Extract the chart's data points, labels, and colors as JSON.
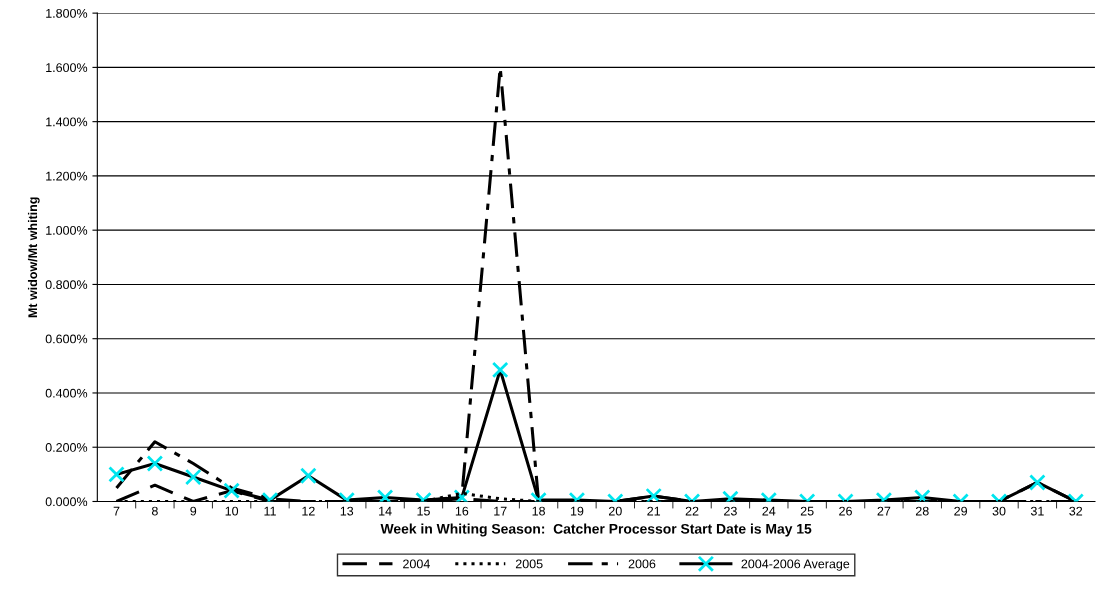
{
  "chart_data": {
    "type": "line",
    "xlabel": "Week in Whiting Season:  Catcher Processor Start Date is May 15",
    "ylabel": "Mt widow/Mt whiting",
    "categories": [
      "7",
      "8",
      "9",
      "10",
      "11",
      "12",
      "13",
      "14",
      "15",
      "16",
      "17",
      "18",
      "19",
      "20",
      "21",
      "22",
      "23",
      "24",
      "25",
      "26",
      "27",
      "28",
      "29",
      "30",
      "31",
      "32"
    ],
    "series": [
      {
        "name": "2004",
        "color": "#000000",
        "line_style": "dashed",
        "marker": "none",
        "values": [
          0.0,
          0.06,
          0.0,
          0.04,
          0.0,
          0.0,
          0.0,
          0.0,
          0.0,
          0.01,
          0.0,
          0.0,
          0.0,
          0.0,
          0.02,
          0.0,
          0.0,
          0.0,
          0.0,
          0.0,
          0.0,
          0.0,
          0.0,
          0.0,
          0.07,
          0.0
        ]
      },
      {
        "name": "2005",
        "color": "#000000",
        "line_style": "dotted",
        "marker": "none",
        "values": [
          0.0,
          0.0,
          0.0,
          0.0,
          0.0,
          0.0,
          0.0,
          0.0,
          0.0,
          0.03,
          0.01,
          0.0,
          0.0,
          0.0,
          0.0,
          0.0,
          0.0,
          0.0,
          0.0,
          0.0,
          0.0,
          0.0,
          0.0,
          0.0,
          0.0,
          0.0
        ]
      },
      {
        "name": "2006",
        "color": "#000000",
        "line_style": "dashdot",
        "marker": "none",
        "values": [
          0.05,
          0.22,
          0.14,
          0.05,
          0.01,
          0.0,
          0.0,
          0.0,
          0.0,
          0.02,
          1.6,
          0.0,
          0.0,
          0.0,
          0.0,
          0.0,
          0.0,
          0.0,
          0.0,
          0.0,
          0.0,
          0.0,
          0.0,
          0.0,
          0.0,
          0.0
        ]
      },
      {
        "name": "2004-2006 Average",
        "color": "#000000",
        "colors": [
          "#00e5ee",
          "#00e5ee",
          "#00e5ee",
          "#00e5ee",
          "#00e5ee",
          "#00e5ee",
          "#00e5ee",
          "#00e5ee",
          "#00e5ee",
          "#00e5ee",
          "#00e5ee",
          "#00e5ee",
          "#00e5ee",
          "#00e5ee",
          "#00e5ee",
          "#00e5ee",
          "#00e5ee",
          "#00e5ee",
          "#00e5ee",
          "#00e5ee",
          "#00e5ee",
          "#00e5ee",
          "#00e5ee",
          "#00e5ee",
          "#00e5ee",
          "#00e5ee"
        ],
        "line_style": "solid",
        "marker": "cross",
        "values": [
          0.1,
          0.14,
          0.09,
          0.04,
          0.005,
          0.095,
          0.005,
          0.015,
          0.005,
          0.015,
          0.485,
          0.005,
          0.005,
          0.0,
          0.02,
          0.0,
          0.01,
          0.005,
          0.0,
          0.0,
          0.005,
          0.015,
          0.0,
          0.0,
          0.07,
          0.0
        ]
      }
    ],
    "ylim": [
      0,
      1.8
    ],
    "yticks": [
      {
        "value": 0,
        "label": "0.000%"
      },
      {
        "value": 0.2,
        "label": "0.200%"
      },
      {
        "value": 0.4,
        "label": "0.400%"
      },
      {
        "value": 0.6,
        "label": "0.600%"
      },
      {
        "value": 0.8,
        "label": "0.800%"
      },
      {
        "value": 1.0,
        "label": "1.000%"
      },
      {
        "value": 1.2,
        "label": "1.200%"
      },
      {
        "value": 1.4,
        "label": "1.400%"
      },
      {
        "value": 1.6,
        "label": "1.600%"
      },
      {
        "value": 1.8,
        "label": "1.800%"
      }
    ],
    "grid": "y",
    "legend": "bottom"
  }
}
